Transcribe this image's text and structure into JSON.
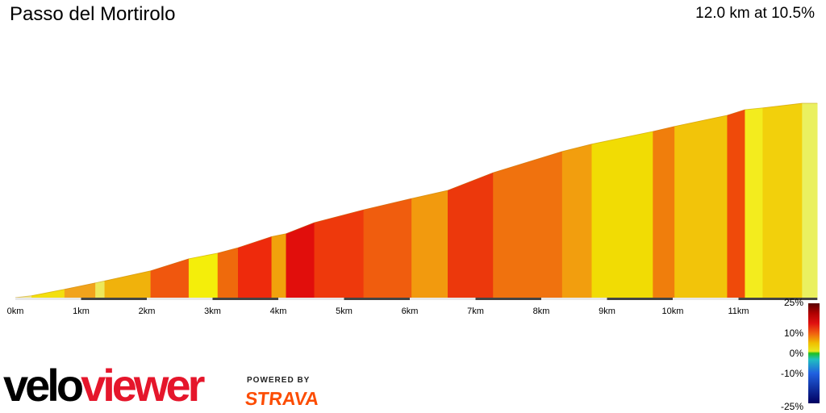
{
  "header": {
    "title": "Passo del Mortirolo",
    "summary": "12.0 km at 10.5%"
  },
  "brand": {
    "velo": "velo",
    "viewer": "viewer",
    "powered_by": "POWERED BY",
    "strava": "STRAVA"
  },
  "chart_data": {
    "type": "area",
    "title": "Passo del Mortirolo",
    "xlabel": "",
    "ylabel": "",
    "x_unit": "km",
    "xlim": [
      0,
      12.0
    ],
    "x_ticks": [
      {
        "value": 0,
        "label": "0km"
      },
      {
        "value": 1,
        "label": "1km"
      },
      {
        "value": 2,
        "label": "2km"
      },
      {
        "value": 3,
        "label": "3km"
      },
      {
        "value": 4,
        "label": "4km"
      },
      {
        "value": 5,
        "label": "5km"
      },
      {
        "value": 6,
        "label": "6km"
      },
      {
        "value": 7,
        "label": "7km"
      },
      {
        "value": 8,
        "label": "8km"
      },
      {
        "value": 9,
        "label": "9km"
      },
      {
        "value": 10,
        "label": "10km"
      },
      {
        "value": 11,
        "label": "11km"
      }
    ],
    "rel_elevation_range": [
      0,
      1
    ],
    "segments": [
      {
        "x0": 0.0,
        "x1": 0.25,
        "y0": 0.0,
        "y1": 0.01,
        "color": "#f2e88a"
      },
      {
        "x0": 0.25,
        "x1": 0.75,
        "y0": 0.01,
        "y1": 0.043,
        "color": "#f3df0e"
      },
      {
        "x0": 0.75,
        "x1": 1.22,
        "y0": 0.043,
        "y1": 0.076,
        "color": "#f1a31c"
      },
      {
        "x0": 1.22,
        "x1": 1.36,
        "y0": 0.076,
        "y1": 0.086,
        "color": "#ede85a"
      },
      {
        "x0": 1.36,
        "x1": 2.06,
        "y0": 0.086,
        "y1": 0.138,
        "color": "#f0b20c"
      },
      {
        "x0": 2.06,
        "x1": 2.64,
        "y0": 0.138,
        "y1": 0.2,
        "color": "#f0570e"
      },
      {
        "x0": 2.64,
        "x1": 3.08,
        "y0": 0.2,
        "y1": 0.229,
        "color": "#f4ee0a"
      },
      {
        "x0": 3.08,
        "x1": 3.39,
        "y0": 0.229,
        "y1": 0.257,
        "color": "#ef6a0c"
      },
      {
        "x0": 3.39,
        "x1": 3.9,
        "y0": 0.257,
        "y1": 0.314,
        "color": "#ee2a0c"
      },
      {
        "x0": 3.9,
        "x1": 4.12,
        "y0": 0.314,
        "y1": 0.329,
        "color": "#f1a20c"
      },
      {
        "x0": 4.12,
        "x1": 4.55,
        "y0": 0.329,
        "y1": 0.386,
        "color": "#e10e0c"
      },
      {
        "x0": 4.55,
        "x1": 5.3,
        "y0": 0.386,
        "y1": 0.452,
        "color": "#ee390c"
      },
      {
        "x0": 5.3,
        "x1": 6.03,
        "y0": 0.452,
        "y1": 0.51,
        "color": "#f05d0e"
      },
      {
        "x0": 6.03,
        "x1": 6.58,
        "y0": 0.51,
        "y1": 0.552,
        "color": "#f29a0e"
      },
      {
        "x0": 6.58,
        "x1": 7.27,
        "y0": 0.552,
        "y1": 0.643,
        "color": "#ec380c"
      },
      {
        "x0": 7.27,
        "x1": 8.32,
        "y0": 0.643,
        "y1": 0.752,
        "color": "#f0720e"
      },
      {
        "x0": 8.32,
        "x1": 8.77,
        "y0": 0.752,
        "y1": 0.79,
        "color": "#f29e0e"
      },
      {
        "x0": 8.77,
        "x1": 9.7,
        "y0": 0.79,
        "y1": 0.855,
        "color": "#f1dc04"
      },
      {
        "x0": 9.7,
        "x1": 10.03,
        "y0": 0.855,
        "y1": 0.881,
        "color": "#f07e0c"
      },
      {
        "x0": 10.03,
        "x1": 10.83,
        "y0": 0.881,
        "y1": 0.938,
        "color": "#f2c40a"
      },
      {
        "x0": 10.83,
        "x1": 11.1,
        "y0": 0.938,
        "y1": 0.967,
        "color": "#ef4a0a"
      },
      {
        "x0": 11.1,
        "x1": 11.37,
        "y0": 0.967,
        "y1": 0.976,
        "color": "#f3ec1e"
      },
      {
        "x0": 11.37,
        "x1": 11.97,
        "y0": 0.976,
        "y1": 1.0,
        "color": "#f2d00c"
      },
      {
        "x0": 11.97,
        "x1": 12.2,
        "y0": 1.0,
        "y1": 1.0,
        "color": "#eaf060"
      }
    ],
    "km_band": [
      {
        "x0": 0.0,
        "x1": 1.0,
        "shade": "light"
      },
      {
        "x0": 1.0,
        "x1": 2.0,
        "shade": "dark"
      },
      {
        "x0": 2.0,
        "x1": 3.0,
        "shade": "light"
      },
      {
        "x0": 3.0,
        "x1": 4.0,
        "shade": "dark"
      },
      {
        "x0": 4.0,
        "x1": 5.0,
        "shade": "light"
      },
      {
        "x0": 5.0,
        "x1": 6.0,
        "shade": "dark"
      },
      {
        "x0": 6.0,
        "x1": 7.0,
        "shade": "light"
      },
      {
        "x0": 7.0,
        "x1": 8.0,
        "shade": "dark"
      },
      {
        "x0": 8.0,
        "x1": 9.0,
        "shade": "light"
      },
      {
        "x0": 9.0,
        "x1": 10.0,
        "shade": "dark"
      },
      {
        "x0": 10.0,
        "x1": 11.0,
        "shade": "light"
      },
      {
        "x0": 11.0,
        "x1": 12.2,
        "shade": "dark"
      }
    ],
    "band_colors": {
      "light": "#e8e8e8",
      "dark": "#444444"
    },
    "gradient_legend": {
      "range": [
        -25,
        25
      ],
      "labels": [
        {
          "value": 25,
          "label": "25%"
        },
        {
          "value": 10,
          "label": "10%"
        },
        {
          "value": 0,
          "label": "0%"
        },
        {
          "value": -10,
          "label": "-10%"
        },
        {
          "value": -25,
          "label": "-25%"
        }
      ],
      "stops": [
        {
          "value": 25,
          "color": "#5a0000"
        },
        {
          "value": 20,
          "color": "#b00000"
        },
        {
          "value": 15,
          "color": "#e01010"
        },
        {
          "value": 10,
          "color": "#f06010"
        },
        {
          "value": 5,
          "color": "#f0c000"
        },
        {
          "value": 1,
          "color": "#e8e820"
        },
        {
          "value": 0,
          "color": "#20c020"
        },
        {
          "value": -3,
          "color": "#20c0c0"
        },
        {
          "value": -10,
          "color": "#2060e0"
        },
        {
          "value": -25,
          "color": "#000060"
        }
      ]
    }
  }
}
